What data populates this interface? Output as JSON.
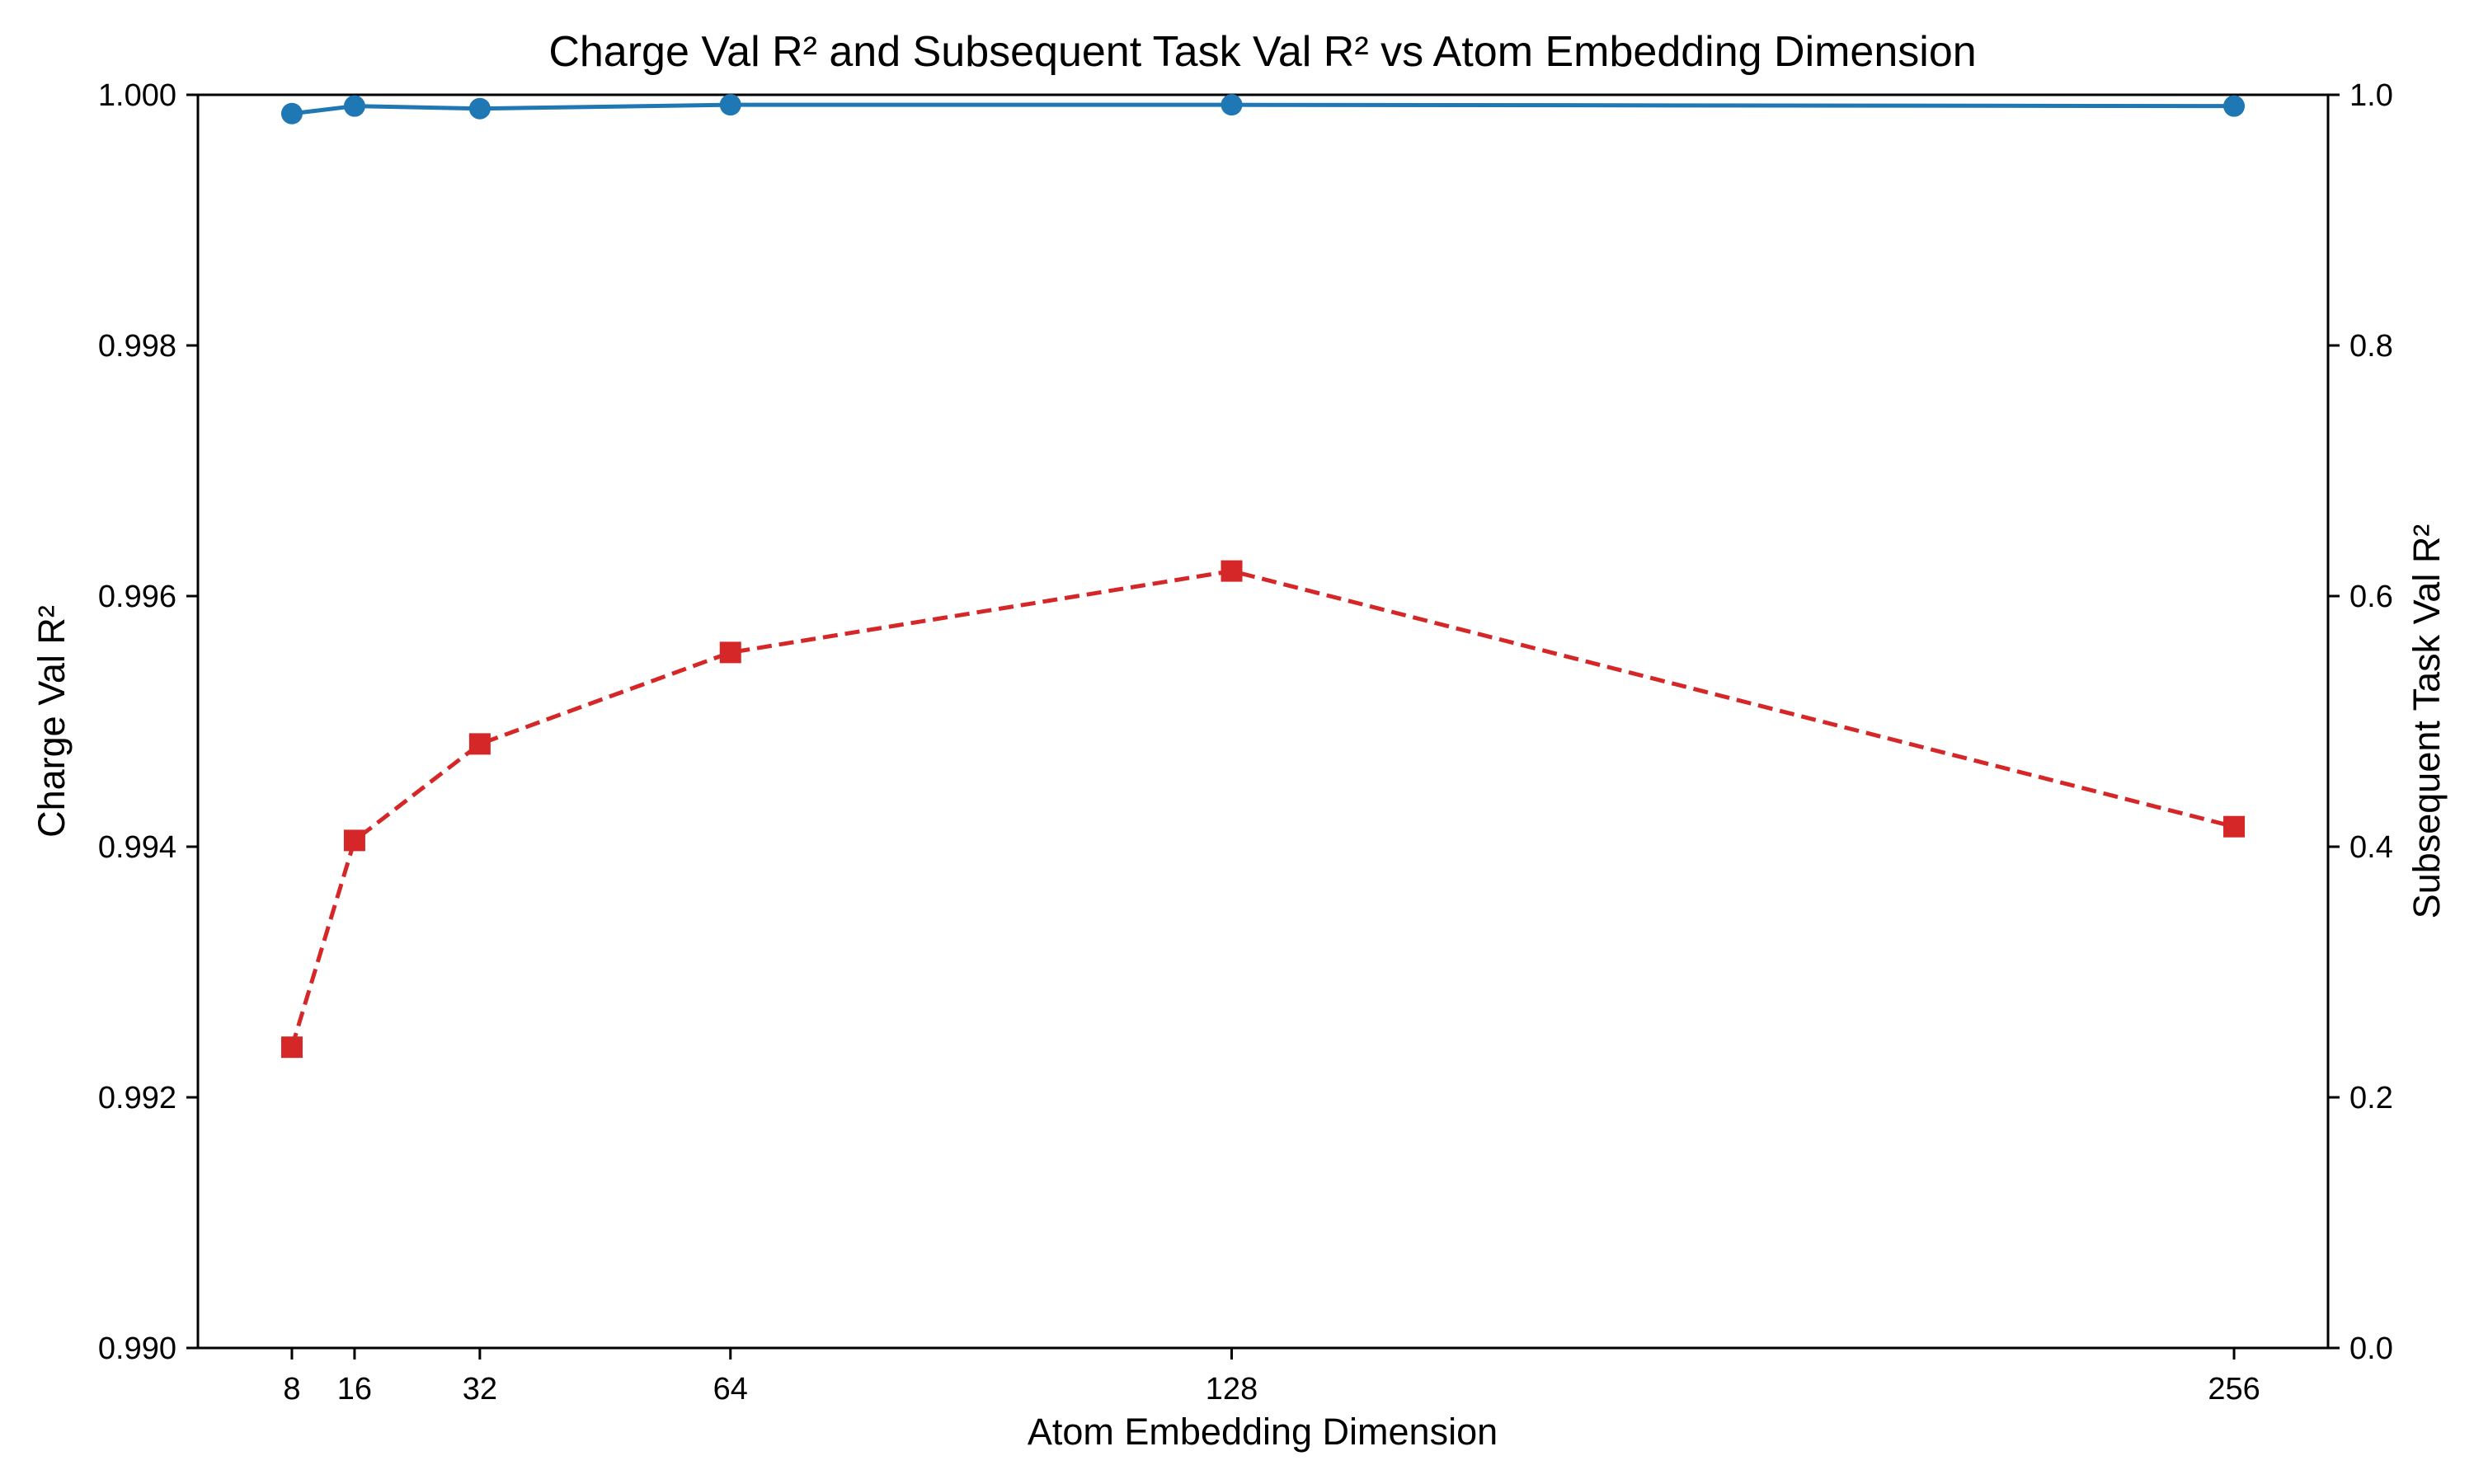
{
  "chart_data": {
    "type": "line",
    "title": "Charge Val R² and Subsequent Task Val R² vs Atom Embedding Dimension",
    "xlabel": "Atom Embedding Dimension",
    "ylabel": "Charge Val R²",
    "y2label": "Subsequent Task Val R²",
    "x": [
      8,
      16,
      32,
      64,
      128,
      256
    ],
    "x_tick_labels": [
      "8",
      "16",
      "32",
      "64",
      "128",
      "256"
    ],
    "xlim": [
      -4,
      268
    ],
    "ylim": [
      0.99,
      1.0
    ],
    "y_tick_labels": [
      "0.990",
      "0.992",
      "0.994",
      "0.996",
      "0.998",
      "1.000"
    ],
    "y2lim": [
      0.0,
      1.0
    ],
    "y2_tick_labels": [
      "0.0",
      "0.2",
      "0.4",
      "0.6",
      "0.8",
      "1.0"
    ],
    "grid": false,
    "series": [
      {
        "axis": "left",
        "color": "#1f77b4",
        "marker": "circle",
        "linestyle": "solid",
        "values": [
          0.99985,
          0.99991,
          0.99989,
          0.99992,
          0.99992,
          0.99991
        ]
      },
      {
        "axis": "right",
        "color": "#d62728",
        "marker": "square",
        "linestyle": "dashed",
        "values": [
          0.24,
          0.405,
          0.482,
          0.555,
          0.62,
          0.416
        ]
      }
    ]
  }
}
